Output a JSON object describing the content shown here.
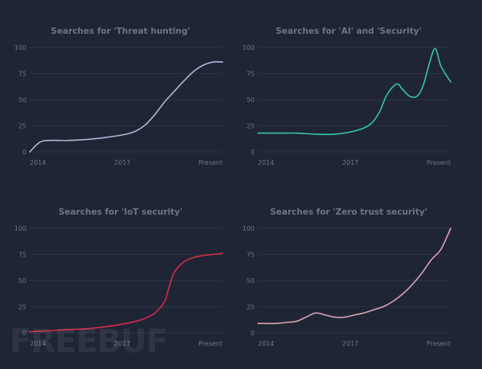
{
  "chart_data": [
    {
      "type": "line",
      "title": "Searches for 'Threat hunting'",
      "color": "#aab7d3",
      "ylim": [
        0,
        100
      ],
      "yticks": [
        0,
        25,
        50,
        75,
        100
      ],
      "xlabels": [
        "2014",
        "2017",
        "Present"
      ],
      "x": [
        0,
        0.05,
        0.1,
        0.2,
        0.3,
        0.4,
        0.5,
        0.55,
        0.6,
        0.65,
        0.7,
        0.75,
        0.8,
        0.85,
        0.9,
        0.95,
        1.0
      ],
      "values": [
        0,
        9,
        11,
        11,
        12,
        14,
        17,
        20,
        26,
        36,
        48,
        58,
        68,
        77,
        83,
        86,
        86
      ]
    },
    {
      "type": "line",
      "title": "Searches for 'AI' and 'Security'",
      "color": "#33c3b0",
      "ylim": [
        0,
        100
      ],
      "yticks": [
        0,
        25,
        50,
        75,
        100
      ],
      "xlabels": [
        "2014",
        "2017",
        "Present"
      ],
      "x": [
        0,
        0.1,
        0.2,
        0.3,
        0.4,
        0.5,
        0.58,
        0.63,
        0.67,
        0.72,
        0.75,
        0.79,
        0.83,
        0.86,
        0.89,
        0.92,
        0.95,
        1.0
      ],
      "values": [
        18,
        18,
        18,
        17,
        17,
        20,
        26,
        38,
        55,
        65,
        60,
        53,
        54,
        65,
        85,
        99,
        82,
        67
      ]
    },
    {
      "type": "line",
      "title": "Searches for 'IoT security'",
      "color": "#d42b4b",
      "ylim": [
        0,
        100
      ],
      "yticks": [
        0,
        25,
        50,
        75,
        100
      ],
      "xlabels": [
        "2014",
        "2017",
        "Present"
      ],
      "x": [
        0,
        0.1,
        0.2,
        0.3,
        0.4,
        0.5,
        0.55,
        0.6,
        0.65,
        0.7,
        0.72,
        0.75,
        0.8,
        0.85,
        0.9,
        0.95,
        1.0
      ],
      "values": [
        1,
        2,
        3,
        4,
        6,
        9,
        11,
        14,
        19,
        30,
        42,
        58,
        68,
        72,
        74,
        75,
        76
      ]
    },
    {
      "type": "line",
      "title": "Searches for 'Zero trust security'",
      "color": "#d8a3b3",
      "ylim": [
        0,
        100
      ],
      "yticks": [
        0,
        25,
        50,
        75,
        100
      ],
      "xlabels": [
        "2014",
        "2017",
        "Present"
      ],
      "x": [
        0,
        0.1,
        0.15,
        0.2,
        0.25,
        0.3,
        0.35,
        0.4,
        0.45,
        0.5,
        0.55,
        0.6,
        0.65,
        0.7,
        0.75,
        0.8,
        0.85,
        0.9,
        0.95,
        1.0
      ],
      "values": [
        9,
        9,
        10,
        11,
        15,
        19,
        17,
        15,
        15,
        17,
        19,
        22,
        25,
        30,
        37,
        46,
        57,
        70,
        80,
        100
      ]
    }
  ],
  "watermark": "FREEBUF"
}
